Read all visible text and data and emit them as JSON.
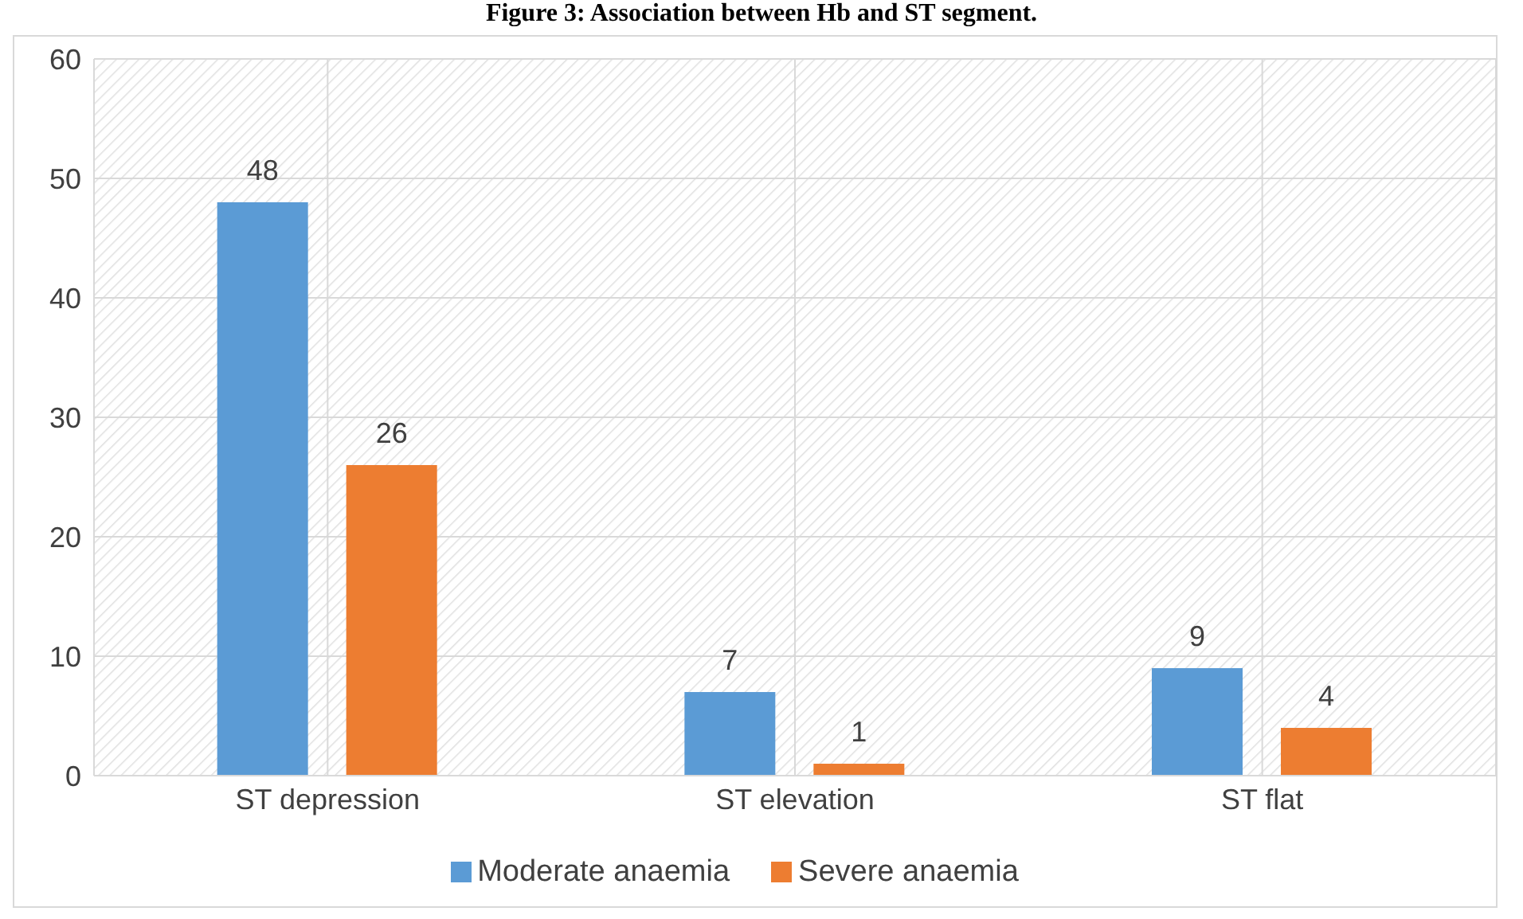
{
  "chart_data": {
    "type": "bar",
    "title": "Figure 3: Association between Hb and ST segment.",
    "categories": [
      "ST depression",
      "ST elevation",
      "ST flat"
    ],
    "series": [
      {
        "name": "Moderate anaemia",
        "color": "#5b9bd5",
        "values": [
          48,
          7,
          9
        ]
      },
      {
        "name": "Severe anaemia",
        "color": "#ed7d31",
        "values": [
          26,
          1,
          4
        ]
      }
    ],
    "ylim": [
      0,
      60
    ],
    "yticks": [
      0,
      10,
      20,
      30,
      40,
      50,
      60
    ],
    "grid": true,
    "legend": "bottom",
    "data_labels": true
  }
}
